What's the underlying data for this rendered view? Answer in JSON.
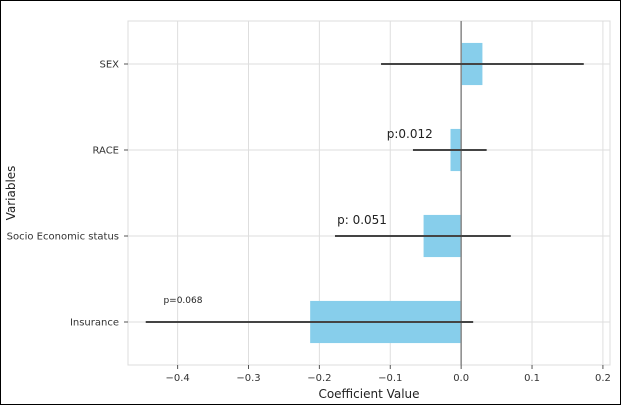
{
  "chart_data": {
    "type": "bar",
    "orientation": "horizontal",
    "categories": [
      "SEX",
      "RACE",
      "Socio Economic status",
      "Insurance"
    ],
    "values": [
      0.03,
      -0.015,
      -0.053,
      -0.213
    ],
    "ci_low": [
      -0.113,
      -0.068,
      -0.178,
      -0.445
    ],
    "ci_high": [
      0.173,
      0.036,
      0.07,
      0.017
    ],
    "xlabel": "Coefficient Value",
    "ylabel": "Variables",
    "xlim": [
      -0.47,
      0.21
    ],
    "xticks": [
      -0.4,
      -0.3,
      -0.2,
      -0.1,
      0.0,
      0.1,
      0.2
    ],
    "xtick_labels": [
      "−0.4",
      "−0.3",
      "−0.2",
      "−0.1",
      "0.0",
      "0.1",
      "0.2"
    ],
    "grid": true,
    "bar_color": "#87CEEB",
    "errorbar_color": "#444444",
    "zero_line_color": "#888888",
    "annotations": [
      {
        "category": "RACE",
        "text": "p:0.012",
        "x": -0.105
      },
      {
        "category": "Socio Economic status",
        "text": "p: 0.051",
        "x": -0.175
      },
      {
        "category": "Insurance",
        "text": "p=0.068",
        "x": -0.42
      }
    ]
  }
}
